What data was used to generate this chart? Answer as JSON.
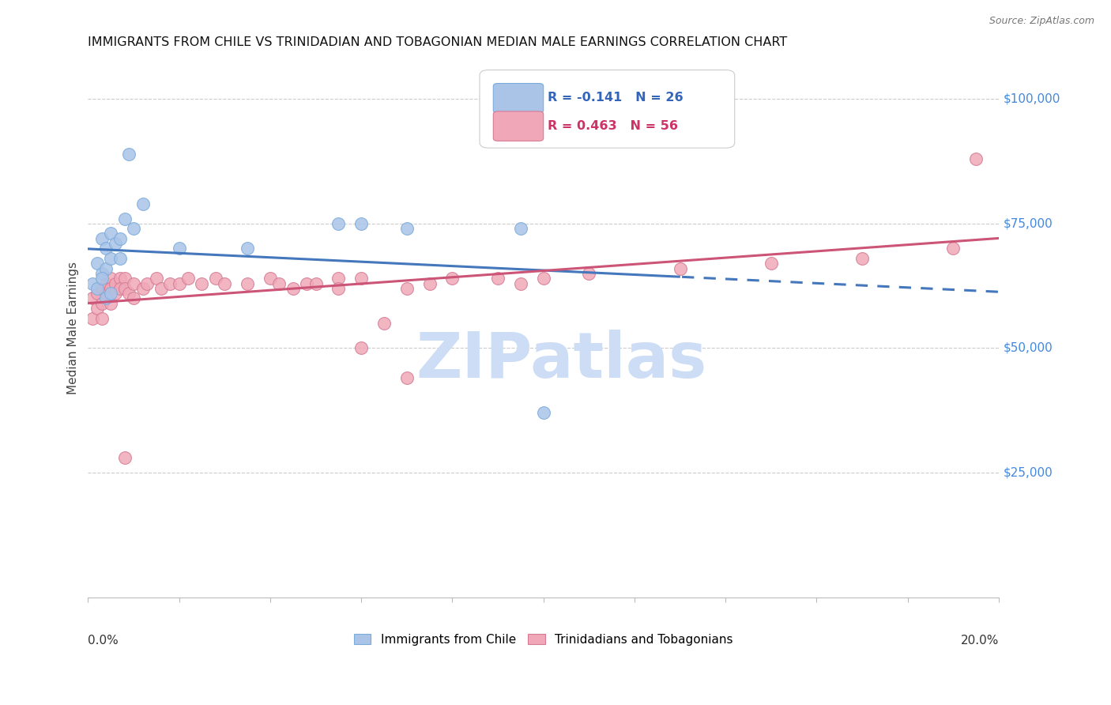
{
  "title": "IMMIGRANTS FROM CHILE VS TRINIDADIAN AND TOBAGONIAN MEDIAN MALE EARNINGS CORRELATION CHART",
  "source": "Source: ZipAtlas.com",
  "ylabel": "Median Male Earnings",
  "xlim": [
    0.0,
    0.2
  ],
  "ylim": [
    0,
    108000
  ],
  "series1_color": "#aac4e8",
  "series1_edge": "#7aabdb",
  "series2_color": "#f0a8b8",
  "series2_edge": "#d47a94",
  "line1_color": "#4477bb",
  "line2_color": "#cc5577",
  "watermark_color": "#ddeeff",
  "chile_x": [
    0.001,
    0.002,
    0.003,
    0.003,
    0.004,
    0.004,
    0.005,
    0.005,
    0.006,
    0.007,
    0.007,
    0.008,
    0.009,
    0.01,
    0.012,
    0.02,
    0.035,
    0.055,
    0.06,
    0.07,
    0.095,
    0.1,
    0.002,
    0.003,
    0.004,
    0.005
  ],
  "chile_y": [
    63000,
    67000,
    72000,
    65000,
    70000,
    66000,
    73000,
    68000,
    71000,
    72000,
    68000,
    76000,
    89000,
    74000,
    79000,
    70000,
    70000,
    75000,
    75000,
    74000,
    74000,
    37000,
    62000,
    64000,
    60000,
    61000
  ],
  "tt_x": [
    0.001,
    0.001,
    0.002,
    0.002,
    0.003,
    0.003,
    0.003,
    0.004,
    0.004,
    0.005,
    0.005,
    0.005,
    0.006,
    0.006,
    0.007,
    0.007,
    0.008,
    0.008,
    0.009,
    0.01,
    0.01,
    0.012,
    0.013,
    0.015,
    0.016,
    0.018,
    0.02,
    0.022,
    0.025,
    0.028,
    0.03,
    0.035,
    0.04,
    0.042,
    0.045,
    0.048,
    0.05,
    0.055,
    0.055,
    0.06,
    0.065,
    0.07,
    0.075,
    0.08,
    0.09,
    0.095,
    0.1,
    0.11,
    0.13,
    0.15,
    0.17,
    0.19,
    0.195,
    0.008,
    0.06,
    0.07
  ],
  "tt_y": [
    60000,
    56000,
    61000,
    58000,
    62000,
    59000,
    56000,
    63000,
    61000,
    64000,
    62000,
    59000,
    63000,
    61000,
    64000,
    62000,
    64000,
    62000,
    61000,
    63000,
    60000,
    62000,
    63000,
    64000,
    62000,
    63000,
    63000,
    64000,
    63000,
    64000,
    63000,
    63000,
    64000,
    63000,
    62000,
    63000,
    63000,
    64000,
    62000,
    64000,
    55000,
    62000,
    63000,
    64000,
    64000,
    63000,
    64000,
    65000,
    66000,
    67000,
    68000,
    70000,
    88000,
    28000,
    50000,
    44000
  ]
}
